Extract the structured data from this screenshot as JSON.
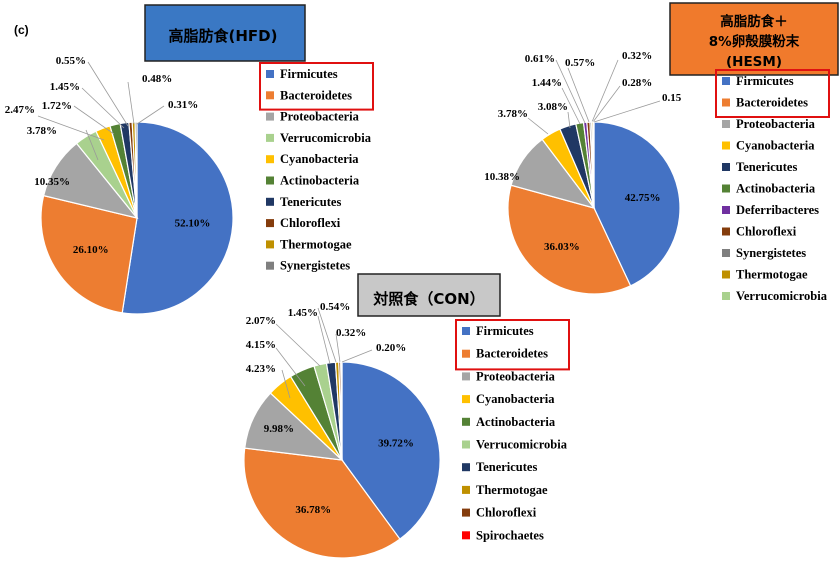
{
  "panel_label": "(c)",
  "colors": {
    "Firmicutes": "#4472c4",
    "Bacteroidetes": "#ed7d31",
    "Proteobacteria": "#a5a5a5",
    "Verrucomicrobia": "#a9d18e",
    "Cyanobacteria": "#ffc000",
    "Actinobacteria": "#548235",
    "Tenericutes": "#203864",
    "Chloroflexi": "#843c0c",
    "Thermotogae": "#bf9000",
    "Synergistetes": "#7f7f7f",
    "Deferribacteres": "#7030a0",
    "Spirochaetes": "#ff0000",
    "hfd_title_bg": "#3a78c4",
    "hesm_title_bg": "#f07a2c",
    "con_title_bg": "#c8c8c8",
    "highlight_box": "#e01010"
  },
  "chart_data": [
    {
      "id": "hfd",
      "type": "pie",
      "title": "高脂肪食(HFD)",
      "legend": [
        "Firmicutes",
        "Bacteroidetes",
        "Proteobacteria",
        "Verrucomicrobia",
        "Cyanobacteria",
        "Actinobacteria",
        "Tenericutes",
        "Chloroflexi",
        "Thermotogae",
        "Synergistetes"
      ],
      "highlighted_legend": [
        "Firmicutes",
        "Bacteroidetes"
      ],
      "slices": [
        {
          "name": "Firmicutes",
          "value": 52.1,
          "label": "52.10%"
        },
        {
          "name": "Bacteroidetes",
          "value": 26.1,
          "label": "26.10%"
        },
        {
          "name": "Proteobacteria",
          "value": 10.35,
          "label": "10.35%"
        },
        {
          "name": "Verrucomicrobia",
          "value": 3.78,
          "label": "3.78%"
        },
        {
          "name": "Cyanobacteria",
          "value": 2.47,
          "label": "2.47%"
        },
        {
          "name": "Actinobacteria",
          "value": 1.72,
          "label": "1.72%"
        },
        {
          "name": "Tenericutes",
          "value": 1.45,
          "label": "1.45%"
        },
        {
          "name": "Chloroflexi",
          "value": 0.55,
          "label": "0.55%"
        },
        {
          "name": "Thermotogae",
          "value": 0.48,
          "label": "0.48%"
        },
        {
          "name": "Synergistetes",
          "value": 0.31,
          "label": "0.31%"
        }
      ]
    },
    {
      "id": "hesm",
      "type": "pie",
      "title": "高脂肪食＋ 8%卵殻膜粉末 (HESM)",
      "title_lines": [
        "高脂肪食＋",
        "8%卵殻膜粉末",
        "(HESM)"
      ],
      "legend": [
        "Firmicutes",
        "Bacteroidetes",
        "Proteobacteria",
        "Cyanobacteria",
        "Tenericutes",
        "Actinobacteria",
        "Deferribacteres",
        "Chloroflexi",
        "Synergistetes",
        "Thermotogae",
        "Verrucomicrobia"
      ],
      "highlighted_legend": [
        "Firmicutes",
        "Bacteroidetes"
      ],
      "slices": [
        {
          "name": "Firmicutes",
          "value": 42.75,
          "label": "42.75%"
        },
        {
          "name": "Bacteroidetes",
          "value": 36.03,
          "label": "36.03%"
        },
        {
          "name": "Proteobacteria",
          "value": 10.38,
          "label": "10.38%"
        },
        {
          "name": "Cyanobacteria",
          "value": 3.78,
          "label": "3.78%"
        },
        {
          "name": "Tenericutes",
          "value": 3.08,
          "label": "3.08%"
        },
        {
          "name": "Actinobacteria",
          "value": 1.44,
          "label": "1.44%"
        },
        {
          "name": "Deferribacteres",
          "value": 0.61,
          "label": "0.61%"
        },
        {
          "name": "Chloroflexi",
          "value": 0.57,
          "label": "0.57%"
        },
        {
          "name": "Synergistetes",
          "value": 0.32,
          "label": "0.32%"
        },
        {
          "name": "Thermotogae",
          "value": 0.28,
          "label": "0.28%"
        },
        {
          "name": "Verrucomicrobia",
          "value": 0.15,
          "label": "0.15"
        }
      ]
    },
    {
      "id": "con",
      "type": "pie",
      "title": "対照食（CON）",
      "legend": [
        "Firmicutes",
        "Bacteroidetes",
        "Proteobacteria",
        "Cyanobacteria",
        "Actinobacteria",
        "Verrucomicrobia",
        "Tenericutes",
        "Thermotogae",
        "Chloroflexi",
        "Spirochaetes"
      ],
      "highlighted_legend": [
        "Firmicutes",
        "Bacteroidetes"
      ],
      "slices": [
        {
          "name": "Firmicutes",
          "value": 39.72,
          "label": "39.72%"
        },
        {
          "name": "Bacteroidetes",
          "value": 36.78,
          "label": "36.78%"
        },
        {
          "name": "Proteobacteria",
          "value": 9.98,
          "label": "9.98%"
        },
        {
          "name": "Cyanobacteria",
          "value": 4.23,
          "label": "4.23%"
        },
        {
          "name": "Actinobacteria",
          "value": 4.15,
          "label": "4.15%"
        },
        {
          "name": "Verrucomicrobia",
          "value": 2.07,
          "label": "2.07%"
        },
        {
          "name": "Tenericutes",
          "value": 1.45,
          "label": "1.45%"
        },
        {
          "name": "Thermotogae",
          "value": 0.54,
          "label": "0.54%"
        },
        {
          "name": "Chloroflexi",
          "value": 0.32,
          "label": "0.32%"
        },
        {
          "name": "Spirochaetes",
          "value": 0.2,
          "label": "0.20%"
        }
      ]
    }
  ]
}
